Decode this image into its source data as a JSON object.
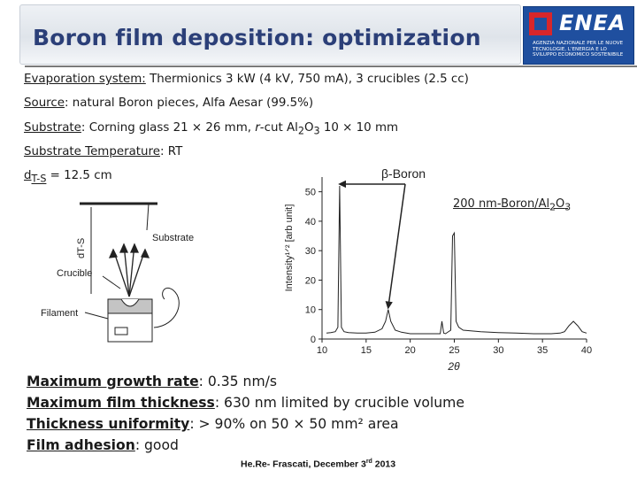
{
  "slide": {
    "title": "Boron film deposition: optimization",
    "logo": {
      "name": "ENEA",
      "subtitle": "Agenzia Nazionale per le Nuove Tecnologie, l'Energia e lo Sviluppo Economico Sostenibile"
    },
    "details": [
      {
        "label": "Evaporation system:",
        "text": " Thermionics 3 kW (4 kV, 750 mA), 3 crucibles (2.5 cc)"
      },
      {
        "label": "Source",
        "text": ": natural Boron pieces, Alfa Aesar (99.5%)"
      },
      {
        "label": "Substrate",
        "text_a": ": Corning glass 21 × 26 mm, ",
        "text_b": "r",
        "text_c": "-cut Al",
        "sub1": "2",
        "text_d": "O",
        "sub2": "3",
        "text_e": " 10 × 10 mm"
      },
      {
        "label": "Substrate Temperature",
        "text": ": RT"
      },
      {
        "label": "d",
        "sub": "T-S",
        "text": " = 12.5 cm"
      }
    ],
    "schematic": {
      "substrate_label": "Substrate",
      "crucible_label": "Crucible",
      "filament_label": "Filament",
      "distance_label": "dT-S"
    },
    "results": [
      {
        "label": "Maximum growth rate",
        "text": ": 0.35 nm/s"
      },
      {
        "label": "Maximum film thickness",
        "text": ": 630 nm limited by crucible volume"
      },
      {
        "label": "Thickness uniformity",
        "text": ": > 90% on 50 × 50 mm² area"
      },
      {
        "label": "Film adhesion",
        "text": ": good"
      }
    ],
    "footer": {
      "text_a": "He.Re- Frascati, December 3",
      "sup": "rd",
      "text_b": " 2013"
    }
  },
  "chart_data": {
    "type": "line",
    "xlabel": "2θ",
    "ylabel": "Intensity¹ᐟ² [arb unit]",
    "xlim": [
      10,
      40
    ],
    "ylim": [
      0,
      55
    ],
    "xticks": [
      10,
      15,
      20,
      25,
      30,
      35,
      40
    ],
    "yticks": [
      0,
      10,
      20,
      30,
      40,
      50
    ],
    "annotations": [
      {
        "text": "β-Boron",
        "points_to": [
          12.0,
          17.5
        ]
      },
      {
        "text": "200 nm-Boron/Al2O3"
      }
    ],
    "series": [
      {
        "x": [
          10.5,
          11.0,
          11.5,
          11.8,
          12.0,
          12.2,
          12.5,
          13.0,
          14.0,
          15.0,
          16.0,
          16.8,
          17.2,
          17.5,
          17.8,
          18.3,
          19.0,
          20.0,
          21.0,
          22.0,
          23.0,
          23.4,
          23.6,
          23.8,
          24.0,
          24.6,
          24.8,
          25.0,
          25.2,
          25.5,
          26.0,
          28.0,
          30.0,
          32.0,
          34.0,
          35.0,
          36.0,
          37.0,
          37.5,
          38.0,
          38.5,
          39.0,
          39.5,
          40.0
        ],
        "y": [
          2.0,
          2.2,
          2.5,
          4.0,
          52.0,
          4.0,
          2.5,
          2.2,
          2.0,
          2.0,
          2.3,
          3.5,
          6.0,
          10.0,
          6.0,
          3.0,
          2.3,
          1.8,
          1.8,
          1.8,
          1.8,
          1.8,
          6.0,
          2.0,
          1.8,
          3.0,
          35.0,
          36.0,
          6.0,
          4.0,
          3.0,
          2.5,
          2.2,
          2.0,
          1.8,
          1.8,
          1.8,
          2.0,
          2.5,
          4.5,
          6.0,
          4.5,
          2.5,
          2.0
        ]
      }
    ]
  }
}
